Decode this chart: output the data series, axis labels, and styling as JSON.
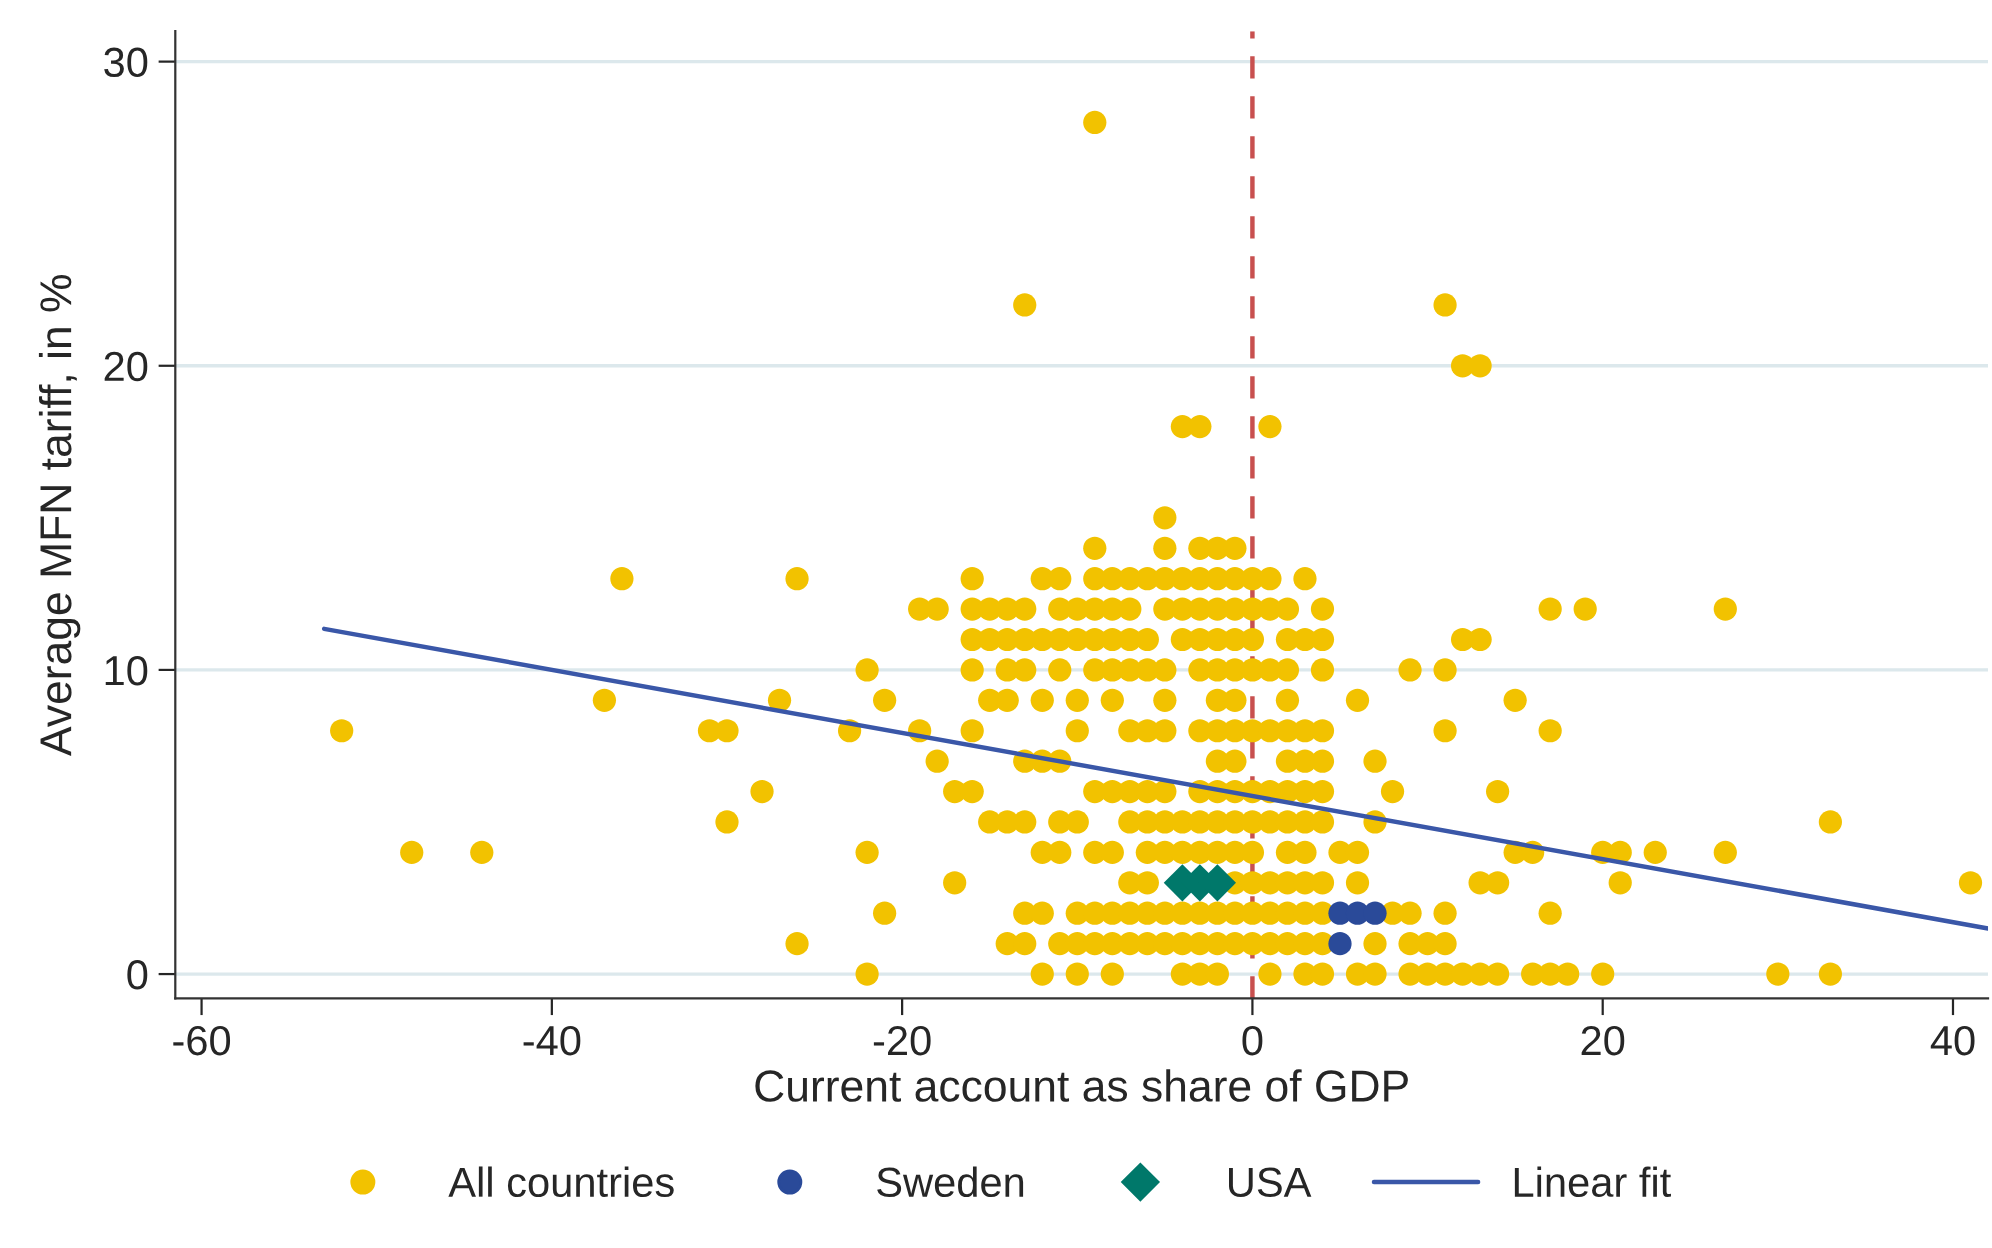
{
  "chart_data": {
    "type": "scatter",
    "xlabel": "Current account as share of GDP",
    "ylabel": "Average MFN tariff, in %",
    "xlim": [
      -61.5,
      42
    ],
    "xticks": [
      -60,
      -40,
      -20,
      0,
      20,
      40
    ],
    "ylim": [
      -0.8,
      31
    ],
    "yticks": [
      0,
      10,
      20,
      30
    ],
    "grid": "y",
    "legend": "bottom",
    "ref_lines": [
      {
        "axis": "x",
        "value": 0,
        "color": "#c8504f",
        "line_style": "dashed"
      }
    ],
    "series": [
      {
        "name": "All countries",
        "marker": "circle",
        "color": "#f2c200",
        "x": [
          -9,
          -13,
          11,
          12,
          13,
          -4,
          -3,
          1,
          -5,
          -9,
          -5,
          -3,
          -2,
          -1,
          -36,
          -26,
          -16,
          -12,
          -11,
          -9,
          -8,
          -7,
          -6,
          -5,
          -4,
          -3,
          -2,
          -1,
          0,
          1,
          3,
          -19,
          -18,
          -16,
          -15,
          -14,
          -13,
          -11,
          -10,
          -9,
          -8,
          -7,
          -5,
          -4,
          -3,
          -2,
          -1,
          0,
          1,
          2,
          4,
          17,
          19,
          27,
          -16,
          -15,
          -14,
          -13,
          -12,
          -11,
          -10,
          -9,
          -8,
          -7,
          -6,
          -4,
          -3,
          -2,
          -1,
          0,
          2,
          3,
          4,
          12,
          13,
          -22,
          -16,
          -14,
          -13,
          -11,
          -9,
          -8,
          -7,
          -6,
          -5,
          -3,
          -2,
          -1,
          0,
          1,
          2,
          4,
          9,
          11,
          -37,
          -27,
          -21,
          -15,
          -14,
          -12,
          -10,
          -8,
          -5,
          -2,
          -1,
          2,
          6,
          15,
          -52,
          -31,
          -30,
          -23,
          -19,
          -16,
          -10,
          -7,
          -6,
          -5,
          -3,
          -2,
          -1,
          0,
          1,
          2,
          3,
          4,
          11,
          17,
          -18,
          -13,
          -12,
          -11,
          -2,
          -1,
          2,
          3,
          4,
          7,
          -28,
          -17,
          -16,
          -9,
          -8,
          -7,
          -6,
          -5,
          -3,
          -2,
          -1,
          0,
          1,
          2,
          3,
          4,
          8,
          14,
          -30,
          -15,
          -14,
          -13,
          -11,
          -10,
          -7,
          -6,
          -5,
          -4,
          -3,
          -2,
          -1,
          0,
          1,
          2,
          3,
          4,
          7,
          33,
          -48,
          -44,
          -22,
          -12,
          -11,
          -9,
          -8,
          -6,
          -5,
          -4,
          -3,
          -2,
          -1,
          0,
          2,
          3,
          5,
          6,
          15,
          16,
          20,
          21,
          23,
          27,
          -17,
          -7,
          -6,
          -1,
          0,
          1,
          2,
          3,
          4,
          6,
          13,
          14,
          21,
          41,
          -21,
          -13,
          -12,
          -10,
          -9,
          -8,
          -7,
          -6,
          -5,
          -4,
          -3,
          -2,
          -1,
          0,
          1,
          2,
          3,
          4,
          8,
          9,
          11,
          17,
          -26,
          -14,
          -13,
          -11,
          -10,
          -9,
          -8,
          -7,
          -6,
          -5,
          -4,
          -3,
          -2,
          -1,
          0,
          1,
          2,
          3,
          4,
          7,
          9,
          10,
          11,
          -22,
          -12,
          -10,
          -8,
          -4,
          -3,
          -2,
          1,
          3,
          4,
          6,
          7,
          9,
          10,
          11,
          12,
          13,
          14,
          16,
          17,
          18,
          20,
          30,
          33
        ],
        "values": [
          28,
          22,
          22,
          20,
          20,
          18,
          18,
          18,
          15,
          14,
          14,
          14,
          14,
          14,
          13,
          13,
          13,
          13,
          13,
          13,
          13,
          13,
          13,
          13,
          13,
          13,
          13,
          13,
          13,
          13,
          13,
          12,
          12,
          12,
          12,
          12,
          12,
          12,
          12,
          12,
          12,
          12,
          12,
          12,
          12,
          12,
          12,
          12,
          12,
          12,
          12,
          12,
          12,
          12,
          11,
          11,
          11,
          11,
          11,
          11,
          11,
          11,
          11,
          11,
          11,
          11,
          11,
          11,
          11,
          11,
          11,
          11,
          11,
          11,
          11,
          10,
          10,
          10,
          10,
          10,
          10,
          10,
          10,
          10,
          10,
          10,
          10,
          10,
          10,
          10,
          10,
          10,
          10,
          10,
          9,
          9,
          9,
          9,
          9,
          9,
          9,
          9,
          9,
          9,
          9,
          9,
          9,
          9,
          8,
          8,
          8,
          8,
          8,
          8,
          8,
          8,
          8,
          8,
          8,
          8,
          8,
          8,
          8,
          8,
          8,
          8,
          8,
          8,
          7,
          7,
          7,
          7,
          7,
          7,
          7,
          7,
          7,
          7,
          6,
          6,
          6,
          6,
          6,
          6,
          6,
          6,
          6,
          6,
          6,
          6,
          6,
          6,
          6,
          6,
          6,
          6,
          5,
          5,
          5,
          5,
          5,
          5,
          5,
          5,
          5,
          5,
          5,
          5,
          5,
          5,
          5,
          5,
          5,
          5,
          5,
          5,
          4,
          4,
          4,
          4,
          4,
          4,
          4,
          4,
          4,
          4,
          4,
          4,
          4,
          4,
          4,
          4,
          4,
          4,
          4,
          4,
          4,
          4,
          4,
          4,
          3,
          3,
          3,
          3,
          3,
          3,
          3,
          3,
          3,
          3,
          3,
          3,
          3,
          3,
          2,
          2,
          2,
          2,
          2,
          2,
          2,
          2,
          2,
          2,
          2,
          2,
          2,
          2,
          2,
          2,
          2,
          2,
          2,
          2,
          2,
          2,
          1,
          1,
          1,
          1,
          1,
          1,
          1,
          1,
          1,
          1,
          1,
          1,
          1,
          1,
          1,
          1,
          1,
          1,
          1,
          1,
          1,
          1,
          1,
          0,
          0,
          0,
          0,
          0,
          0,
          0,
          0,
          0,
          0,
          0,
          0,
          0,
          0,
          0,
          0,
          0,
          0,
          0,
          0,
          0,
          0,
          0,
          0
        ]
      },
      {
        "name": "Sweden",
        "marker": "circle",
        "color": "#2a4a99",
        "x": [
          5,
          5,
          6,
          7
        ],
        "values": [
          1,
          2,
          2,
          2
        ]
      },
      {
        "name": "USA",
        "marker": "diamond",
        "color": "#00786a",
        "x": [
          -4,
          -3,
          -2
        ],
        "values": [
          3,
          3,
          3
        ]
      },
      {
        "name": "Linear fit",
        "type": "line",
        "marker": "none",
        "color": "#3a57a8",
        "x": [
          -53,
          42
        ],
        "values": [
          11.35,
          1.5
        ]
      }
    ]
  }
}
